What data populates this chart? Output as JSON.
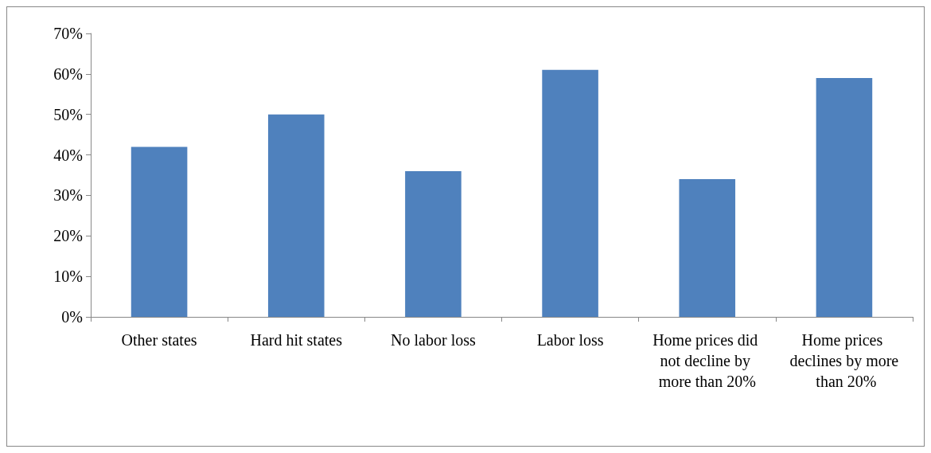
{
  "chart_data": {
    "type": "bar",
    "categories": [
      "Other states",
      "Hard hit states",
      "No labor loss",
      "Labor loss",
      "Home prices did not decline by more than 20%",
      "Home prices declines by more than 20%"
    ],
    "values": [
      42,
      50,
      36,
      61,
      34,
      59
    ],
    "color": "#4f81bd",
    "ylim": [
      0,
      70
    ],
    "yticks": [
      {
        "value": 0,
        "label": "0%"
      },
      {
        "value": 10,
        "label": "10%"
      },
      {
        "value": 20,
        "label": "20%"
      },
      {
        "value": 30,
        "label": "30%"
      },
      {
        "value": 40,
        "label": "40%"
      },
      {
        "value": 50,
        "label": "50%"
      },
      {
        "value": 60,
        "label": "60%"
      },
      {
        "value": 70,
        "label": "70%"
      }
    ],
    "grid": false
  }
}
